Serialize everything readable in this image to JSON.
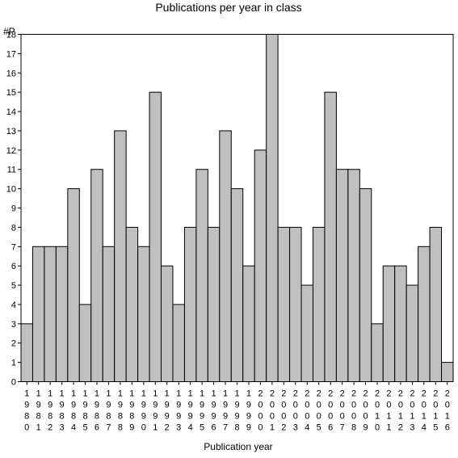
{
  "chart_data": {
    "type": "bar",
    "title": "Publications per year in class",
    "ylabel": "#P",
    "xlabel": "Publication year",
    "ylim": [
      0,
      18
    ],
    "yticks": [
      0,
      1,
      2,
      3,
      4,
      5,
      6,
      7,
      8,
      9,
      10,
      11,
      12,
      13,
      14,
      15,
      16,
      17,
      18
    ],
    "grid": false,
    "bar_color": "#c0c0c0",
    "categories": [
      "1980",
      "1981",
      "1982",
      "1983",
      "1984",
      "1985",
      "1986",
      "1987",
      "1988",
      "1989",
      "1990",
      "1991",
      "1992",
      "1993",
      "1994",
      "1995",
      "1996",
      "1997",
      "1998",
      "1999",
      "2000",
      "2001",
      "2002",
      "2003",
      "2004",
      "2005",
      "2006",
      "2007",
      "2008",
      "2009",
      "2010",
      "2011",
      "2012",
      "2013",
      "2014",
      "2015",
      "2016"
    ],
    "values": [
      3,
      7,
      7,
      7,
      10,
      4,
      11,
      7,
      13,
      8,
      7,
      15,
      6,
      4,
      8,
      11,
      8,
      13,
      10,
      6,
      12,
      18,
      8,
      8,
      5,
      8,
      15,
      11,
      11,
      10,
      3,
      6,
      6,
      5,
      7,
      8,
      1
    ]
  }
}
